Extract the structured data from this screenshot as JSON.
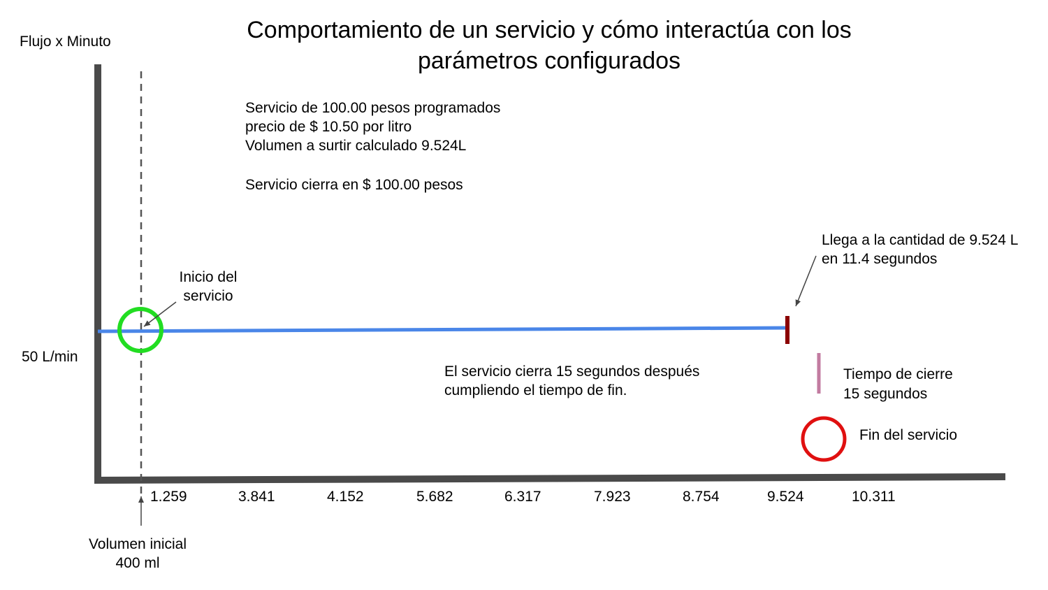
{
  "title": {
    "line1": "Comportamiento de un servicio y cómo interactúa con los",
    "line2": "parámetros configurados"
  },
  "y_axis_label": "Flujo x Minuto",
  "y_value_label": "50 L/min",
  "x_ticks": [
    "1.259",
    "3.841",
    "4.152",
    "5.682",
    "6.317",
    "7.923",
    "8.754",
    "9.524",
    "10.311"
  ],
  "info_block": {
    "line1": "Servicio de 100.00 pesos programados",
    "line2": "precio de $ 10.50 por litro",
    "line3": "Volumen a surtir calculado 9.524L",
    "line4": "Servicio cierra en $ 100.00 pesos"
  },
  "start_annotation": {
    "line1": "Inicio del",
    "line2": "servicio"
  },
  "reach_annotation": {
    "line1": "Llega a la cantidad de 9.524 L",
    "line2": "en 11.4 segundos"
  },
  "close_note": {
    "line1": "El servicio cierra 15 segundos después",
    "line2": "cumpliendo el tiempo de fin."
  },
  "close_time": {
    "line1": "Tiempo de cierre",
    "line2": "15 segundos"
  },
  "end_label": "Fin del servicio",
  "initial_volume": {
    "line1": "Volumen inicial",
    "line2": "400 ml"
  },
  "colors": {
    "axis": "#4a4a4a",
    "flow_line": "#4a86e8",
    "start_circle": "#22dd22",
    "target_marker": "#8b0000",
    "close_marker": "#c27ba0",
    "end_circle": "#e01010",
    "dashed_line": "#555555",
    "arrow": "#444444"
  }
}
